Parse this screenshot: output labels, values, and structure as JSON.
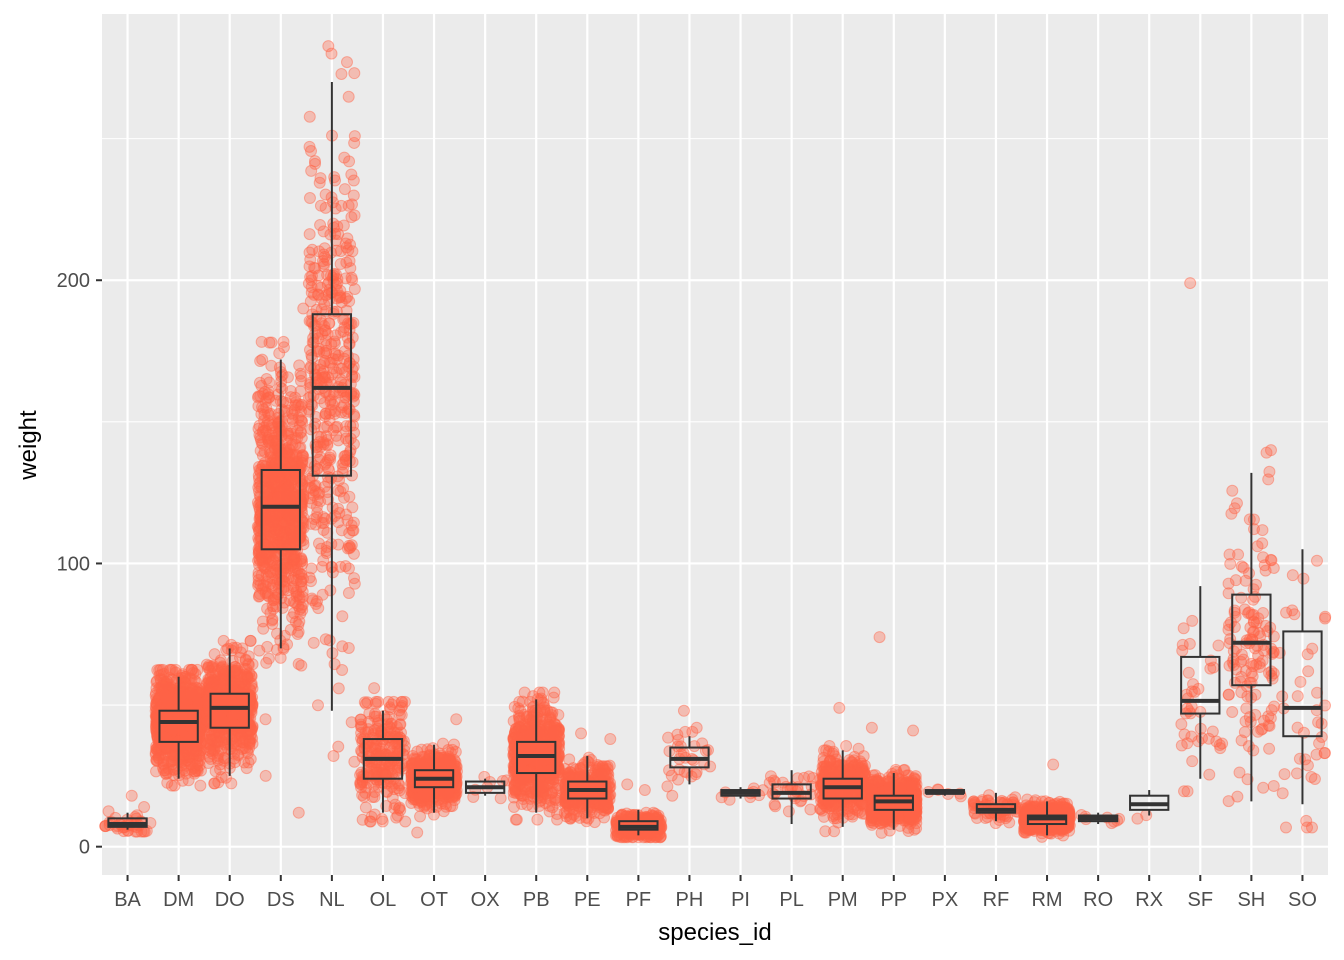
{
  "chart_data": {
    "type": "box",
    "overlay": "jittered points",
    "title": "",
    "xlabel": "species_id",
    "ylabel": "weight",
    "ylim": [
      -10,
      294
    ],
    "yticks": [
      0,
      100,
      200
    ],
    "grid": true,
    "colors": {
      "points": "#FF6347",
      "box": "#333333",
      "panel": "#EBEBEB",
      "grid": "#FFFFFF"
    },
    "categories": [
      "BA",
      "DM",
      "DO",
      "DS",
      "NL",
      "OL",
      "OT",
      "OX",
      "PB",
      "PE",
      "PF",
      "PH",
      "PI",
      "PL",
      "PM",
      "PP",
      "PX",
      "RF",
      "RM",
      "RO",
      "RX",
      "SF",
      "SH",
      "SO"
    ],
    "boxes": [
      {
        "id": "BA",
        "lower": 6,
        "q1": 7,
        "median": 8,
        "q3": 10,
        "upper": 12,
        "outliers": [
          18,
          14
        ]
      },
      {
        "id": "DM",
        "lower": 24,
        "q1": 37,
        "median": 44,
        "q3": 48,
        "upper": 60,
        "outliers": []
      },
      {
        "id": "DO",
        "lower": 25,
        "q1": 42,
        "median": 49,
        "q3": 54,
        "upper": 70,
        "outliers": []
      },
      {
        "id": "DS",
        "lower": 70,
        "q1": 105,
        "median": 120,
        "q3": 133,
        "upper": 172,
        "outliers": [
          190,
          178,
          45,
          25,
          12
        ]
      },
      {
        "id": "NL",
        "lower": 48,
        "q1": 131,
        "median": 162,
        "q3": 188,
        "upper": 270,
        "outliers": [
          280,
          277,
          32,
          30
        ]
      },
      {
        "id": "OL",
        "lower": 12,
        "q1": 24,
        "median": 31,
        "q3": 38,
        "upper": 48,
        "outliers": [
          56
        ]
      },
      {
        "id": "OT",
        "lower": 12,
        "q1": 21,
        "median": 24,
        "q3": 27,
        "upper": 36,
        "outliers": [
          45,
          5
        ]
      },
      {
        "id": "OX",
        "lower": 18,
        "q1": 19,
        "median": 21,
        "q3": 23,
        "upper": 24,
        "outliers": []
      },
      {
        "id": "PB",
        "lower": 12,
        "q1": 26,
        "median": 32,
        "q3": 37,
        "upper": 52,
        "outliers": []
      },
      {
        "id": "PE",
        "lower": 10,
        "q1": 17,
        "median": 20,
        "q3": 23,
        "upper": 32,
        "outliers": [
          40,
          38
        ]
      },
      {
        "id": "PF",
        "lower": 4,
        "q1": 6,
        "median": 7,
        "q3": 9,
        "upper": 13,
        "outliers": [
          22,
          20
        ]
      },
      {
        "id": "PH",
        "lower": 22,
        "q1": 28,
        "median": 31,
        "q3": 35,
        "upper": 39,
        "outliers": [
          48,
          42,
          18
        ]
      },
      {
        "id": "PI",
        "lower": 17,
        "q1": 18,
        "median": 19,
        "q3": 20,
        "upper": 21,
        "outliers": []
      },
      {
        "id": "PL",
        "lower": 8,
        "q1": 17,
        "median": 19,
        "q3": 22,
        "upper": 27,
        "outliers": []
      },
      {
        "id": "PM",
        "lower": 7,
        "q1": 17,
        "median": 21,
        "q3": 24,
        "upper": 34,
        "outliers": [
          49
        ]
      },
      {
        "id": "PP",
        "lower": 6,
        "q1": 13,
        "median": 16,
        "q3": 18,
        "upper": 26,
        "outliers": [
          74,
          42,
          41
        ]
      },
      {
        "id": "PX",
        "lower": 18,
        "q1": 19,
        "median": 19,
        "q3": 20,
        "upper": 20,
        "outliers": []
      },
      {
        "id": "RF",
        "lower": 9,
        "q1": 12,
        "median": 13,
        "q3": 15,
        "upper": 19,
        "outliers": []
      },
      {
        "id": "RM",
        "lower": 4,
        "q1": 8,
        "median": 10,
        "q3": 11,
        "upper": 16,
        "outliers": [
          29
        ]
      },
      {
        "id": "RO",
        "lower": 8,
        "q1": 9,
        "median": 10,
        "q3": 11,
        "upper": 12,
        "outliers": []
      },
      {
        "id": "RX",
        "lower": 11,
        "q1": 13,
        "median": 15,
        "q3": 18,
        "upper": 20,
        "outliers": []
      },
      {
        "id": "SF",
        "lower": 24,
        "q1": 47,
        "median": 51.5,
        "q3": 67,
        "upper": 92,
        "outliers": [
          199
        ]
      },
      {
        "id": "SH",
        "lower": 16,
        "q1": 57,
        "median": 72,
        "q3": 89,
        "upper": 132,
        "outliers": [
          140
        ]
      },
      {
        "id": "SO",
        "lower": 15,
        "q1": 39,
        "median": 49,
        "q3": 76,
        "upper": 105,
        "outliers": []
      }
    ]
  }
}
